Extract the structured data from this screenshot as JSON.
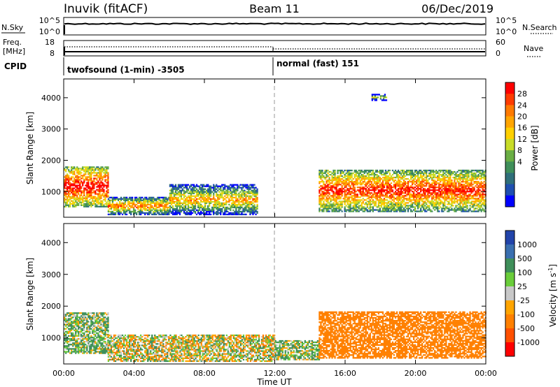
{
  "header": {
    "station": "Inuvik (fitACF)",
    "beam": "Beam 11",
    "date": "06/Dec/2019"
  },
  "top_panels": {
    "nsky_label": "N.Sky",
    "nsky_ticks": [
      "10^5",
      "10^0"
    ],
    "nsearch_label": "N.Search",
    "nsearch_ticks": [
      "10^5",
      "10^0"
    ],
    "freq_label": "Freq.",
    "freq_unit": "[MHz]",
    "freq_ticks": [
      "18",
      "8"
    ],
    "nave_label": "Nave",
    "nave_ticks": [
      "60",
      "0"
    ],
    "cpid_label": "CPID",
    "cpid_segments": [
      {
        "text": "twofsound (1-min) -3505",
        "start_hour": 0
      },
      {
        "text": "normal (fast) 151",
        "start_hour": 12
      }
    ]
  },
  "colorbars": {
    "power": {
      "label": "Power [dB]",
      "ticks": [
        "28",
        "24",
        "20",
        "16",
        "12",
        "8",
        "4"
      ],
      "colors": [
        "#ff0000",
        "#ff3c00",
        "#ff7a00",
        "#ffa500",
        "#ffd000",
        "#c8dc28",
        "#6aae44",
        "#3f8f5a",
        "#2f6f7a",
        "#1f4fb0",
        "#0000ff"
      ]
    },
    "velocity": {
      "label": "Velocity [m s",
      "label_sup": "-1",
      "label_end": "]",
      "ticks": [
        "1000",
        "500",
        "100",
        "25",
        "-25",
        "-100",
        "-500",
        "-1000"
      ],
      "colors": [
        "#2244aa",
        "#3a6fb0",
        "#3f8f5a",
        "#6acd3a",
        "#c8c8c8",
        "#ffa500",
        "#ff8000",
        "#ff5000",
        "#ff0000"
      ]
    }
  },
  "axes": {
    "ylabel": "Slant Range [km]",
    "yticks": [
      "4000",
      "3000",
      "2000",
      "1000"
    ],
    "xlabel": "Time UT",
    "xticks": [
      "00:00",
      "04:00",
      "08:00",
      "12:00",
      "16:00",
      "20:00",
      "00:00"
    ]
  },
  "chart_data": [
    {
      "type": "heatmap",
      "title": "Power",
      "x_range_hours": [
        0,
        24
      ],
      "ylim": [
        180,
        4600
      ],
      "colorbar_label": "Power [dB]",
      "colorbar_ticks": [
        28,
        24,
        20,
        16,
        12,
        8,
        4
      ],
      "regions": [
        {
          "t0": 0.0,
          "t1": 2.5,
          "r0": 500,
          "r1": 1800,
          "value": 24
        },
        {
          "t0": 2.5,
          "t1": 6.0,
          "r0": 250,
          "r1": 800,
          "value": 18
        },
        {
          "t0": 6.0,
          "t1": 11.0,
          "r0": 250,
          "r1": 1200,
          "value": 16
        },
        {
          "t0": 14.5,
          "t1": 24.0,
          "r0": 350,
          "r1": 1700,
          "value": 22
        },
        {
          "t0": 17.5,
          "t1": 18.3,
          "r0": 3900,
          "r1": 4100,
          "value": 10
        }
      ]
    },
    {
      "type": "heatmap",
      "title": "Velocity",
      "x_range_hours": [
        0,
        24
      ],
      "ylim": [
        180,
        4600
      ],
      "colorbar_label": "Velocity [m s-1]",
      "colorbar_ticks": [
        1000,
        500,
        100,
        25,
        -25,
        -100,
        -500,
        -1000
      ],
      "regions": [
        {
          "t0": 0.0,
          "t1": 2.5,
          "r0": 500,
          "r1": 1800,
          "value": 100
        },
        {
          "t0": 2.5,
          "t1": 12.0,
          "r0": 250,
          "r1": 1100,
          "value": 0
        },
        {
          "t0": 12.0,
          "t1": 14.5,
          "r0": 300,
          "r1": 900,
          "value": 100
        },
        {
          "t0": 14.5,
          "t1": 24.0,
          "r0": 350,
          "r1": 1800,
          "value": -300
        }
      ]
    }
  ]
}
